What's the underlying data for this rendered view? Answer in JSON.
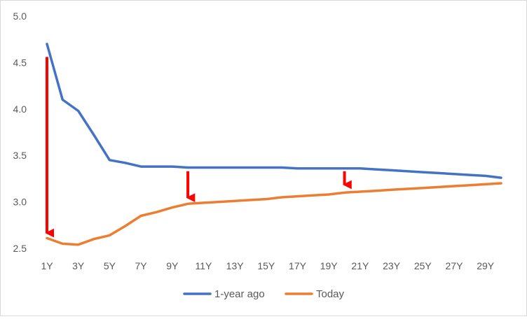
{
  "chart_data": {
    "type": "line",
    "title": "",
    "xlabel": "",
    "ylabel": "",
    "ylim": [
      2.5,
      5.0
    ],
    "yticks": [
      "2.5",
      "3.0",
      "3.5",
      "4.0",
      "4.5",
      "5.0"
    ],
    "x": [
      "1Y",
      "2Y",
      "3Y",
      "4Y",
      "5Y",
      "6Y",
      "7Y",
      "8Y",
      "9Y",
      "10Y",
      "11Y",
      "12Y",
      "13Y",
      "14Y",
      "15Y",
      "16Y",
      "17Y",
      "18Y",
      "19Y",
      "20Y",
      "21Y",
      "22Y",
      "23Y",
      "24Y",
      "25Y",
      "26Y",
      "27Y",
      "28Y",
      "29Y",
      "30Y"
    ],
    "xtick_labels": [
      "1Y",
      "3Y",
      "5Y",
      "7Y",
      "9Y",
      "11Y",
      "13Y",
      "15Y",
      "17Y",
      "19Y",
      "21Y",
      "23Y",
      "25Y",
      "27Y",
      "29Y"
    ],
    "grid": false,
    "legend_position": "bottom",
    "series": [
      {
        "name": "1-year ago",
        "color": "#4472C4",
        "values": [
          4.7,
          4.1,
          3.98,
          3.72,
          3.45,
          3.42,
          3.38,
          3.38,
          3.38,
          3.37,
          3.37,
          3.37,
          3.37,
          3.37,
          3.37,
          3.37,
          3.36,
          3.36,
          3.36,
          3.36,
          3.36,
          3.35,
          3.34,
          3.33,
          3.32,
          3.31,
          3.3,
          3.29,
          3.28,
          3.26
        ]
      },
      {
        "name": "Today",
        "color": "#ED7D31",
        "values": [
          2.61,
          2.55,
          2.54,
          2.6,
          2.64,
          2.74,
          2.85,
          2.89,
          2.94,
          2.98,
          2.99,
          3.0,
          3.01,
          3.02,
          3.03,
          3.05,
          3.06,
          3.07,
          3.08,
          3.1,
          3.11,
          3.12,
          3.13,
          3.14,
          3.15,
          3.16,
          3.17,
          3.18,
          3.19,
          3.2
        ]
      }
    ],
    "annotations": [
      {
        "type": "arrow",
        "color": "#FF0000",
        "x": "1Y",
        "from": 4.56,
        "to": 2.62
      },
      {
        "type": "arrow",
        "color": "#FF0000",
        "x": "10Y",
        "from": 3.33,
        "to": 3.0
      },
      {
        "type": "arrow",
        "color": "#FF0000",
        "x": "20Y",
        "from": 3.33,
        "to": 3.14
      }
    ]
  }
}
